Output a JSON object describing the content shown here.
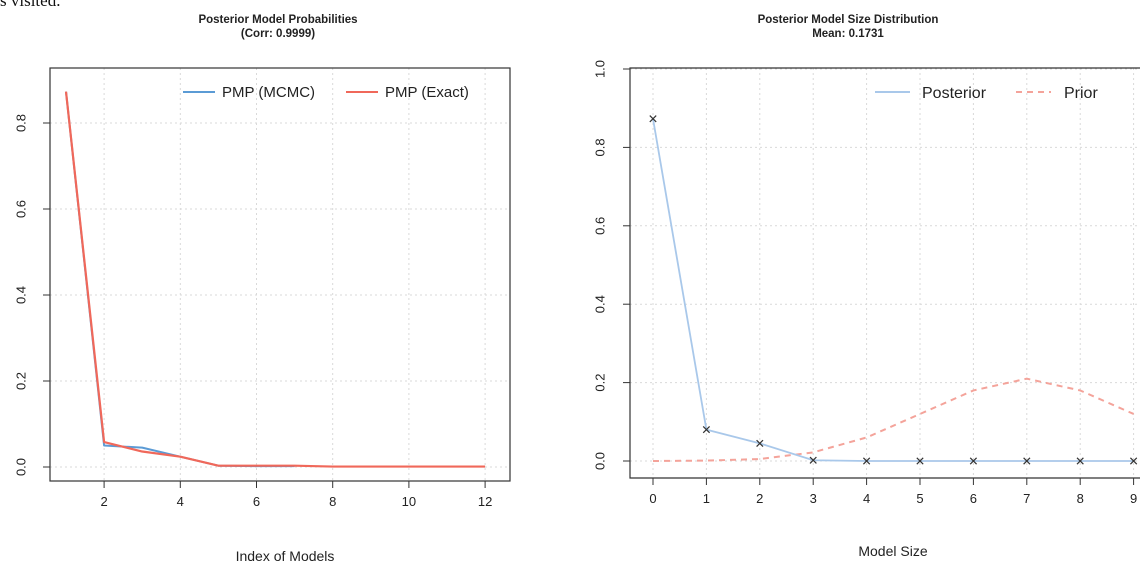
{
  "top_fragment": "s visited.",
  "chart_data": [
    {
      "type": "line",
      "title": "Posterior Model Probabilities",
      "subtitle": "(Corr: 0.9999)",
      "xlabel": "Index of Models",
      "ylabel": "",
      "xlim": [
        1,
        12
      ],
      "ylim": [
        0,
        0.9
      ],
      "xticks": [
        "2",
        "4",
        "6",
        "8",
        "10",
        "12"
      ],
      "yticks": [
        "0.0",
        "0.2",
        "0.4",
        "0.6",
        "0.8"
      ],
      "grid": true,
      "legend_position": "top-right",
      "series": [
        {
          "name": "PMP (MCMC)",
          "color": "#5b9bd5",
          "x": [
            1,
            2,
            3,
            4,
            5,
            6,
            7
          ],
          "values": [
            0.873,
            0.05,
            0.045,
            0.024,
            0.003,
            0.002,
            0.002
          ]
        },
        {
          "name": "PMP (Exact)",
          "color": "#f0685a",
          "x": [
            1,
            2,
            3,
            4,
            5,
            6,
            7,
            8,
            9,
            10,
            11,
            12
          ],
          "values": [
            0.873,
            0.058,
            0.036,
            0.024,
            0.003,
            0.003,
            0.003,
            0.001,
            0.001,
            0.001,
            0.001,
            0.001
          ]
        }
      ]
    },
    {
      "type": "line",
      "title": "Posterior Model Size Distribution",
      "subtitle": "Mean: 0.1731",
      "xlabel": "Model Size",
      "ylabel": "",
      "xlim": [
        0,
        9
      ],
      "ylim": [
        0,
        1.0
      ],
      "xticks": [
        "0",
        "1",
        "2",
        "3",
        "4",
        "5",
        "6",
        "7",
        "8",
        "9"
      ],
      "yticks": [
        "0.0",
        "0.2",
        "0.4",
        "0.6",
        "0.8",
        "1.0"
      ],
      "grid": true,
      "legend_position": "top-right",
      "series": [
        {
          "name": "Posterior",
          "color": "#a9c8ea",
          "marker": "x",
          "x": [
            0,
            1,
            2,
            3,
            4,
            5,
            6,
            7,
            8,
            9
          ],
          "values": [
            0.873,
            0.08,
            0.045,
            0.002,
            0.0,
            0.0,
            0.0,
            0.0,
            0.0,
            0.0
          ]
        },
        {
          "name": "Prior",
          "color": "#f4a39a",
          "dashed": true,
          "x": [
            0,
            1,
            2,
            3,
            4,
            5,
            6,
            7,
            8,
            9
          ],
          "values": [
            0.0,
            0.001,
            0.005,
            0.022,
            0.06,
            0.12,
            0.18,
            0.21,
            0.18,
            0.12
          ]
        }
      ]
    }
  ]
}
